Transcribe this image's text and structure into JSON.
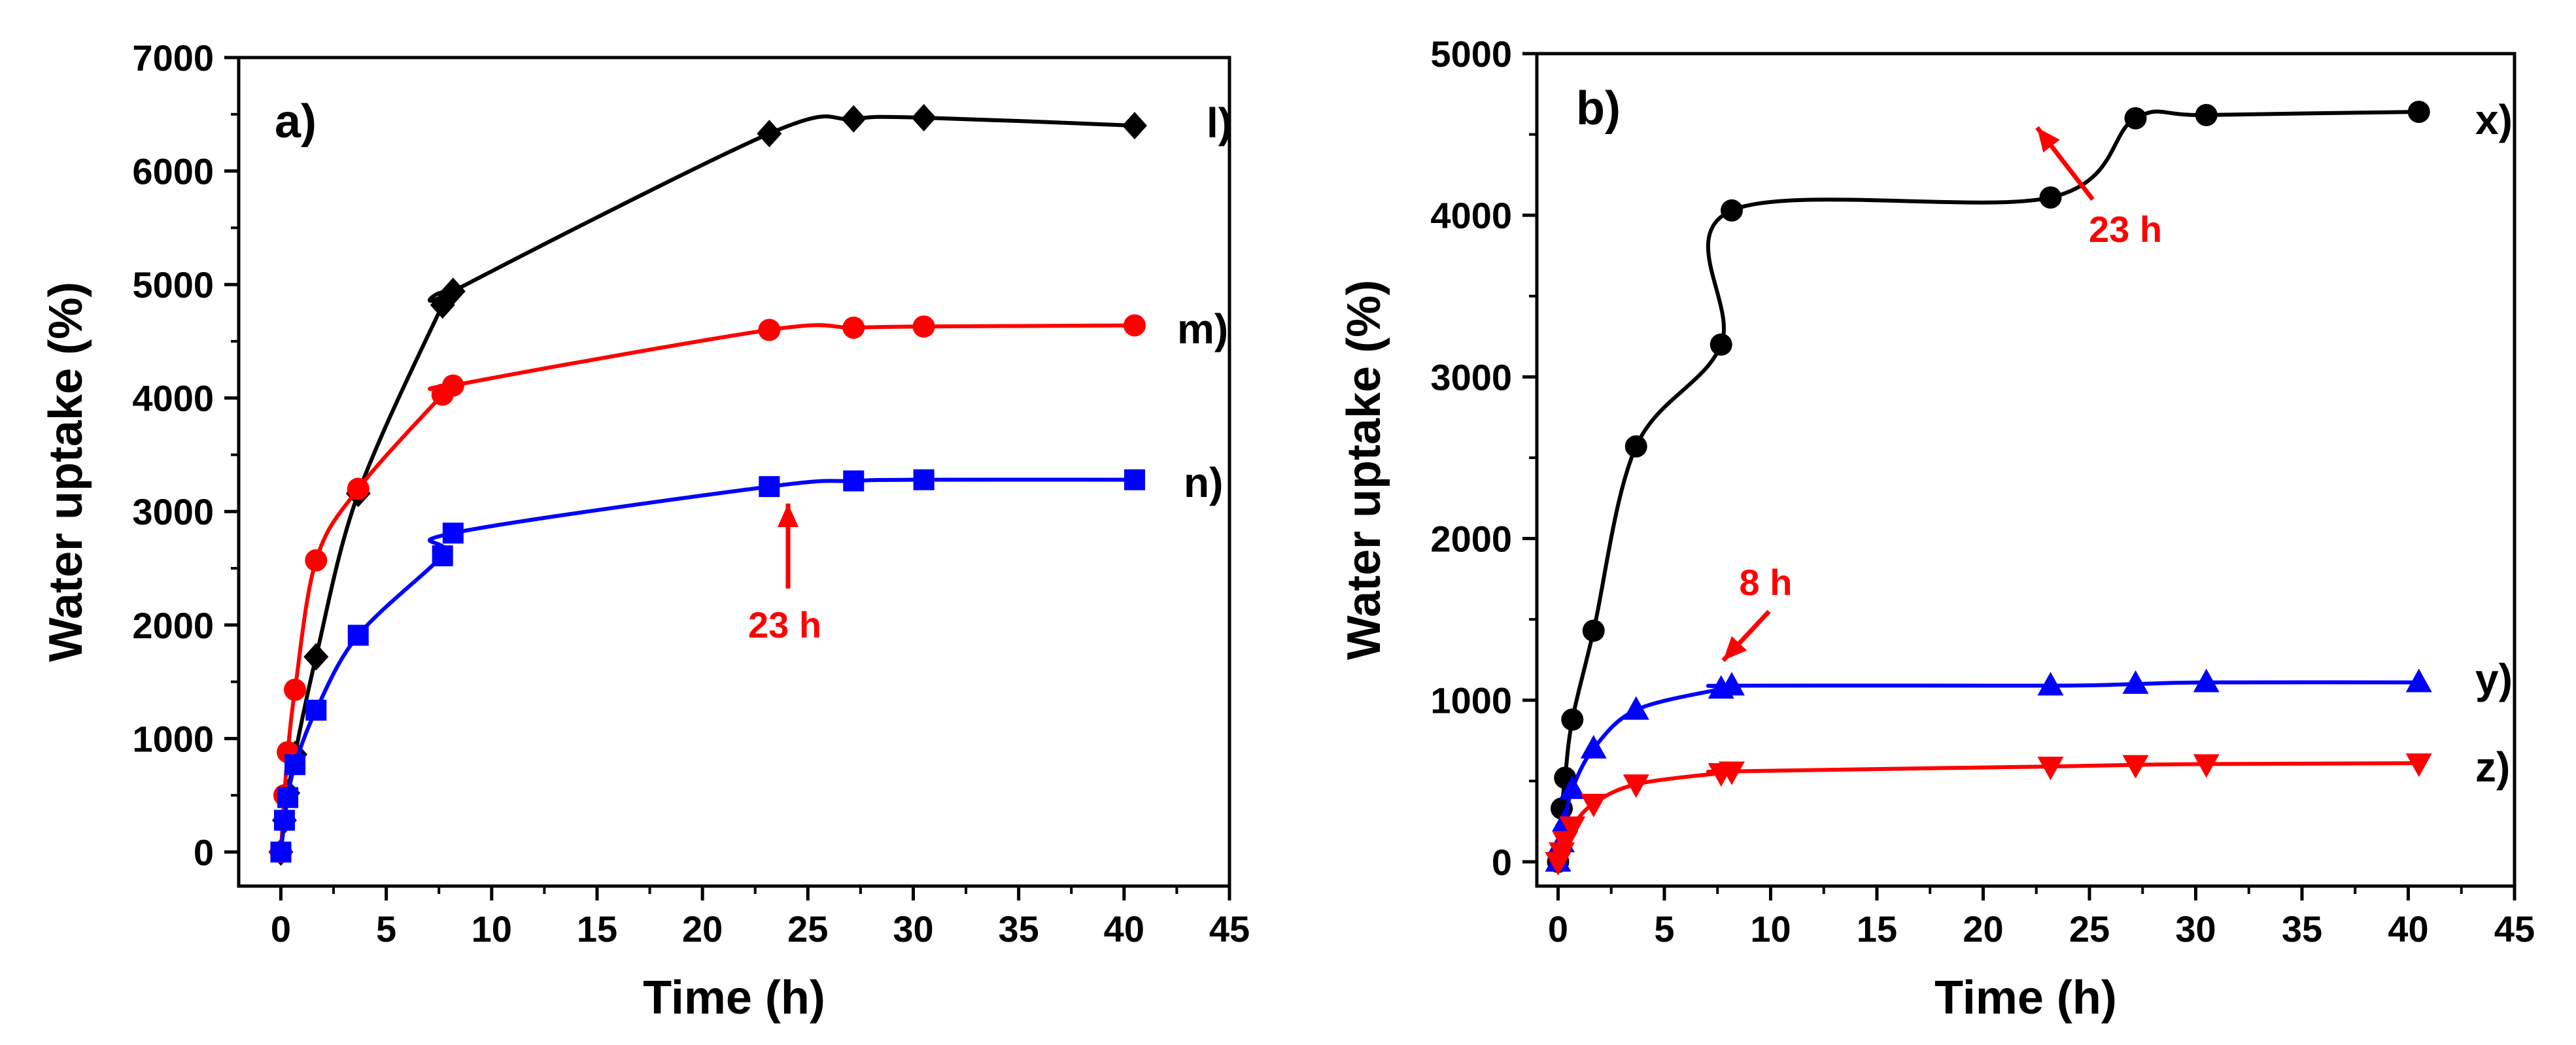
{
  "chart_data": [
    {
      "type": "line",
      "panel_label": "a)",
      "xlabel": "Time (h)",
      "ylabel": "Water uptake (%)",
      "xlim": [
        -2,
        45
      ],
      "ylim": [
        -300,
        7000
      ],
      "xticks": [
        0,
        5,
        10,
        15,
        20,
        25,
        30,
        35,
        40,
        45
      ],
      "xtick_labels": [
        "0",
        "5",
        "10",
        "15",
        "20",
        "25",
        "30",
        "35",
        "40",
        "45"
      ],
      "yticks": [
        0,
        1000,
        2000,
        3000,
        4000,
        5000,
        6000,
        7000
      ],
      "ytick_labels": [
        "0",
        "1000",
        "2000",
        "3000",
        "4000",
        "5000",
        "6000",
        "7000"
      ],
      "legend": "series labels at right end of curves",
      "grid": false,
      "series": [
        {
          "name": "l)",
          "color": "#000000",
          "marker": "diamond",
          "x": [
            0,
            0.17,
            0.33,
            0.67,
            1.67,
            3.67,
            7.67,
            8.17,
            23.17,
            27.17,
            30.5,
            40.5
          ],
          "y": [
            0,
            280,
            520,
            860,
            1720,
            3160,
            4820,
            4940,
            6330,
            6460,
            6470,
            6400
          ]
        },
        {
          "name": "m)",
          "color": "#ff0000",
          "marker": "circle",
          "x": [
            0,
            0.17,
            0.33,
            0.67,
            1.67,
            3.67,
            7.67,
            8.17,
            23.17,
            27.17,
            30.5,
            40.5
          ],
          "y": [
            0,
            500,
            880,
            1430,
            2570,
            3200,
            4030,
            4110,
            4600,
            4620,
            4630,
            4640
          ]
        },
        {
          "name": "n)",
          "color": "#0000ff",
          "marker": "square",
          "x": [
            0,
            0.17,
            0.33,
            0.67,
            1.67,
            3.67,
            7.67,
            8.17,
            23.17,
            27.17,
            30.5,
            40.5
          ],
          "y": [
            0,
            280,
            480,
            770,
            1250,
            1910,
            2610,
            2810,
            3220,
            3270,
            3280,
            3280
          ]
        }
      ],
      "annotations": [
        {
          "text": "23 h",
          "color": "#ff0000",
          "point": [
            23.17,
            3220
          ],
          "arrow": "up"
        }
      ]
    },
    {
      "type": "line",
      "panel_label": "b)",
      "xlabel": "Time (h)",
      "ylabel": "Water uptake (%)",
      "xlim": [
        -1,
        45
      ],
      "ylim": [
        -150,
        5000
      ],
      "xticks": [
        0,
        5,
        10,
        15,
        20,
        25,
        30,
        35,
        40,
        45
      ],
      "xtick_labels": [
        "0",
        "5",
        "10",
        "15",
        "20",
        "25",
        "30",
        "35",
        "40",
        "45"
      ],
      "yticks": [
        0,
        1000,
        2000,
        3000,
        4000,
        5000
      ],
      "ytick_labels": [
        "0",
        "1000",
        "2000",
        "3000",
        "4000",
        "5000"
      ],
      "legend": "series labels at right end of curves",
      "grid": false,
      "series": [
        {
          "name": "x)",
          "color": "#000000",
          "marker": "circle",
          "x": [
            0,
            0.17,
            0.33,
            0.67,
            1.67,
            3.67,
            7.67,
            8.17,
            23.17,
            27.17,
            30.5,
            40.5
          ],
          "y": [
            0,
            330,
            520,
            880,
            1430,
            2570,
            3200,
            4030,
            4110,
            4600,
            4620,
            4640
          ]
        },
        {
          "name": "y)",
          "color": "#0000ff",
          "marker": "triangle-up",
          "x": [
            0,
            0.17,
            0.33,
            0.67,
            1.67,
            3.67,
            7.67,
            8.17,
            23.17,
            27.17,
            30.5,
            40.5
          ],
          "y": [
            0,
            120,
            250,
            450,
            700,
            940,
            1070,
            1090,
            1090,
            1100,
            1110,
            1110
          ]
        },
        {
          "name": "z)",
          "color": "#ff0000",
          "marker": "triangle-down",
          "x": [
            0,
            0.17,
            0.33,
            0.67,
            1.67,
            3.67,
            7.67,
            8.17,
            23.17,
            27.17,
            30.5,
            40.5
          ],
          "y": [
            0,
            60,
            130,
            220,
            360,
            480,
            550,
            560,
            590,
            600,
            605,
            610
          ]
        }
      ],
      "annotations": [
        {
          "text": "23 h",
          "color": "#ff0000",
          "point": [
            23.17,
            4600
          ],
          "arrow": "up-left"
        },
        {
          "text": "8 h",
          "color": "#ff0000",
          "point": [
            8.17,
            1090
          ],
          "arrow": "down-left"
        }
      ]
    }
  ]
}
